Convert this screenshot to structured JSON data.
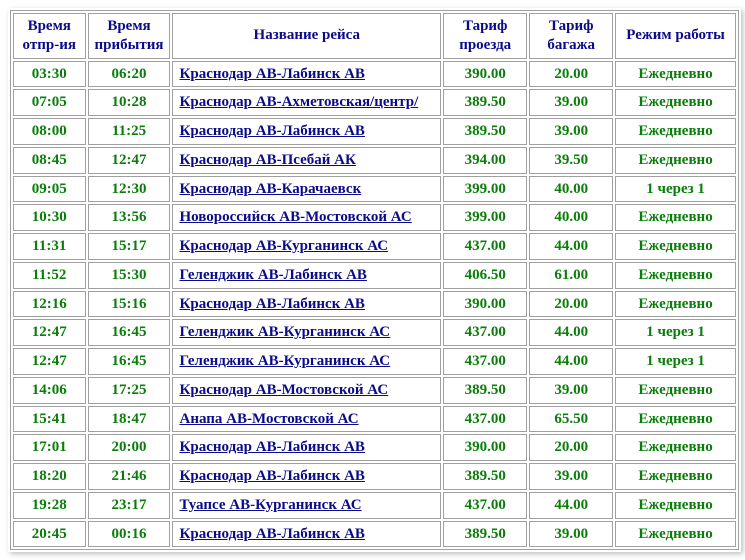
{
  "table": {
    "headers": {
      "dep": "Время отпр-ия",
      "arr": "Время прибытия",
      "route": "Название рейса",
      "fare": "Тариф проезда",
      "bag": "Тариф багажа",
      "sched": "Режим работы"
    },
    "rows": [
      {
        "dep": "03:30",
        "arr": "06:20",
        "route": "Краснодар АВ-Лабинск АВ",
        "fare": "390.00",
        "bag": "20.00",
        "sched": "Ежедневно"
      },
      {
        "dep": "07:05",
        "arr": "10:28",
        "route": "Краснодар АВ-Ахметовская/центр/",
        "fare": "389.50",
        "bag": "39.00",
        "sched": "Ежедневно"
      },
      {
        "dep": "08:00",
        "arr": "11:25",
        "route": "Краснодар АВ-Лабинск АВ",
        "fare": "389.50",
        "bag": "39.00",
        "sched": "Ежедневно"
      },
      {
        "dep": "08:45",
        "arr": "12:47",
        "route": "Краснодар АВ-Псебай АК",
        "fare": "394.00",
        "bag": "39.50",
        "sched": "Ежедневно"
      },
      {
        "dep": "09:05",
        "arr": "12:30",
        "route": "Краснодар АВ-Карачаевск",
        "fare": "399.00",
        "bag": "40.00",
        "sched": "1 через 1"
      },
      {
        "dep": "10:30",
        "arr": "13:56",
        "route": "Новороссийск АВ-Мостовской АС",
        "fare": "399.00",
        "bag": "40.00",
        "sched": "Ежедневно"
      },
      {
        "dep": "11:31",
        "arr": "15:17",
        "route": "Краснодар АВ-Курганинск АС",
        "fare": "437.00",
        "bag": "44.00",
        "sched": "Ежедневно"
      },
      {
        "dep": "11:52",
        "arr": "15:30",
        "route": "Геленджик АВ-Лабинск АВ",
        "fare": "406.50",
        "bag": "61.00",
        "sched": "Ежедневно"
      },
      {
        "dep": "12:16",
        "arr": "15:16",
        "route": "Краснодар АВ-Лабинск АВ",
        "fare": "390.00",
        "bag": "20.00",
        "sched": "Ежедневно"
      },
      {
        "dep": "12:47",
        "arr": "16:45",
        "route": "Геленджик АВ-Курганинск АС",
        "fare": "437.00",
        "bag": "44.00",
        "sched": "1 через 1"
      },
      {
        "dep": "12:47",
        "arr": "16:45",
        "route": "Геленджик АВ-Курганинск АС",
        "fare": "437.00",
        "bag": "44.00",
        "sched": "1 через 1"
      },
      {
        "dep": "14:06",
        "arr": "17:25",
        "route": "Краснодар АВ-Мостовской АС",
        "fare": "389.50",
        "bag": "39.00",
        "sched": "Ежедневно"
      },
      {
        "dep": "15:41",
        "arr": "18:47",
        "route": "Анапа АВ-Мостовской АС",
        "fare": "437.00",
        "bag": "65.50",
        "sched": "Ежедневно"
      },
      {
        "dep": "17:01",
        "arr": "20:00",
        "route": "Краснодар АВ-Лабинск АВ",
        "fare": "390.00",
        "bag": "20.00",
        "sched": "Ежедневно"
      },
      {
        "dep": "18:20",
        "arr": "21:46",
        "route": "Краснодар АВ-Лабинск АВ",
        "fare": "389.50",
        "bag": "39.00",
        "sched": "Ежедневно"
      },
      {
        "dep": "19:28",
        "arr": "23:17",
        "route": "Туапсе АВ-Курганинск АС",
        "fare": "437.00",
        "bag": "44.00",
        "sched": "Ежедневно"
      },
      {
        "dep": "20:45",
        "arr": "00:16",
        "route": "Краснодар АВ-Лабинск АВ",
        "fare": "389.50",
        "bag": "39.00",
        "sched": "Ежедневно"
      }
    ]
  }
}
